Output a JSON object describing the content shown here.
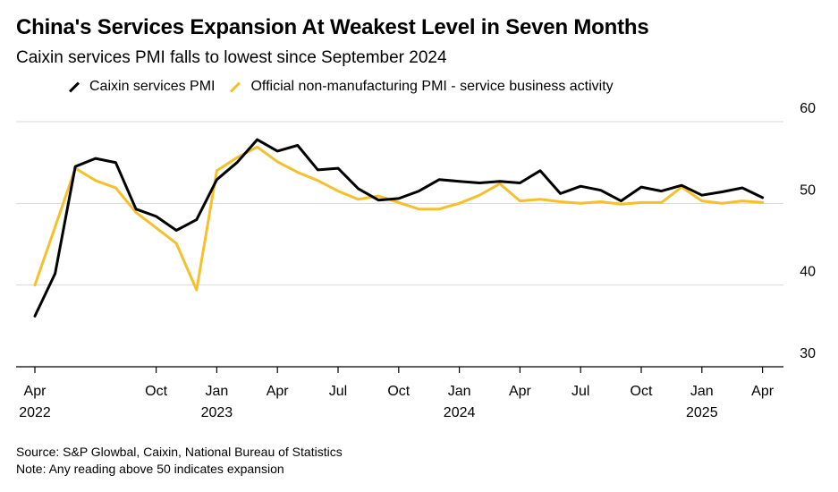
{
  "colors": {
    "caixin": "#000000",
    "official": "#f5c02b",
    "grid": "#d9d9d9",
    "axis": "#000000",
    "background": "#ffffff"
  },
  "chart_data": {
    "type": "line",
    "title": "China's Services Expansion At Weakest Level in Seven Months",
    "subtitle": "Caixin services PMI falls to lowest since September 2024",
    "xlabel": "",
    "ylabel": "",
    "ylim": [
      30,
      60
    ],
    "y_ticks": [
      60,
      50,
      40,
      30
    ],
    "grid": true,
    "legend_position": "top-left",
    "x_start": "2022-04",
    "x_end": "2025-05",
    "x_ticks": [
      {
        "index": 0,
        "month": "Apr",
        "year": "2022"
      },
      {
        "index": 6,
        "month": "Oct",
        "year": ""
      },
      {
        "index": 9,
        "month": "Jan",
        "year": "2023"
      },
      {
        "index": 12,
        "month": "Apr",
        "year": ""
      },
      {
        "index": 15,
        "month": "Jul",
        "year": ""
      },
      {
        "index": 18,
        "month": "Oct",
        "year": ""
      },
      {
        "index": 21,
        "month": "Jan",
        "year": "2024"
      },
      {
        "index": 24,
        "month": "Apr",
        "year": ""
      },
      {
        "index": 27,
        "month": "Jul",
        "year": ""
      },
      {
        "index": 30,
        "month": "Oct",
        "year": ""
      },
      {
        "index": 33,
        "month": "Jan",
        "year": "2025"
      },
      {
        "index": 36,
        "month": "Apr",
        "year": ""
      }
    ],
    "series": [
      {
        "name": "Caixin services PMI",
        "color": "#000000",
        "values": [
          36.2,
          41.4,
          54.5,
          55.5,
          55.0,
          49.3,
          48.4,
          46.7,
          48.0,
          52.9,
          55.0,
          57.8,
          56.4,
          57.1,
          54.1,
          54.3,
          51.8,
          50.4,
          50.6,
          51.5,
          52.9,
          52.7,
          52.5,
          52.7,
          52.5,
          54.0,
          51.2,
          52.1,
          51.6,
          50.3,
          52.0,
          51.5,
          52.2,
          51.0,
          51.4,
          51.9,
          50.7
        ]
      },
      {
        "name": "Official non-manufacturing PMI - service business activity",
        "color": "#f5c02b",
        "values": [
          40.0,
          47.1,
          54.3,
          52.8,
          51.9,
          48.9,
          47.0,
          45.1,
          39.4,
          54.0,
          55.6,
          56.9,
          55.1,
          53.8,
          52.8,
          51.5,
          50.5,
          50.9,
          50.1,
          49.3,
          49.3,
          50.0,
          51.0,
          52.4,
          50.3,
          50.5,
          50.2,
          50.0,
          50.2,
          49.9,
          50.1,
          50.1,
          52.0,
          50.3,
          50.0,
          50.3,
          50.1
        ]
      }
    ]
  },
  "legend": [
    {
      "label": "Caixin services PMI",
      "color": "#000000"
    },
    {
      "label": "Official non-manufacturing PMI - service business activity",
      "color": "#f5c02b"
    }
  ],
  "footer": {
    "source": "Source: S&P Glowbal, Caixin, National Bureau of Statistics",
    "note": "Note: Any reading above 50 indicates expansion"
  }
}
